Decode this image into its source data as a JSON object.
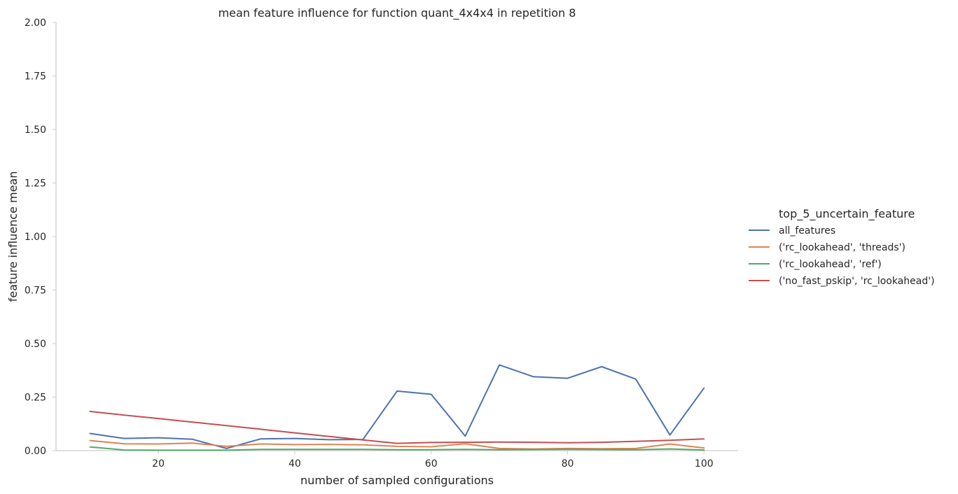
{
  "chart_data": {
    "type": "line",
    "title": "mean feature influence for function quant_4x4x4 in repetition 8",
    "xlabel": "number of sampled configurations",
    "ylabel": "feature influence mean",
    "xlim": [
      5,
      105
    ],
    "ylim": [
      0,
      2.0
    ],
    "xticks": [
      20,
      40,
      60,
      80,
      100
    ],
    "yticks": [
      0.0,
      0.25,
      0.5,
      0.75,
      1.0,
      1.25,
      1.5,
      1.75,
      2.0
    ],
    "xtick_labels": [
      "20",
      "40",
      "60",
      "80",
      "100"
    ],
    "ytick_labels": [
      "0.00",
      "0.25",
      "0.50",
      "0.75",
      "1.00",
      "1.25",
      "1.50",
      "1.75",
      "2.00"
    ],
    "grid": false,
    "legend_title": "top_5_uncertain_feature",
    "legend_position": "right",
    "x": [
      10,
      15,
      20,
      25,
      30,
      35,
      40,
      45,
      50,
      55,
      60,
      65,
      70,
      75,
      80,
      85,
      90,
      95,
      100
    ],
    "series": [
      {
        "name": "all_features",
        "color": "#4c72b0",
        "values": [
          0.08,
          0.057,
          0.06,
          0.053,
          0.01,
          0.055,
          0.057,
          0.051,
          0.052,
          0.278,
          0.263,
          0.068,
          0.4,
          0.345,
          0.338,
          0.392,
          0.334,
          0.073,
          0.292
        ]
      },
      {
        "name": "('rc_lookahead', 'threads')",
        "color": "#dd8452",
        "values": [
          0.047,
          0.032,
          0.031,
          0.035,
          0.02,
          0.031,
          0.028,
          0.029,
          0.027,
          0.02,
          0.018,
          0.032,
          0.01,
          0.008,
          0.01,
          0.009,
          0.01,
          0.031,
          0.012
        ]
      },
      {
        "name": "('rc_lookahead', 'ref')",
        "color": "#55a868",
        "values": [
          0.017,
          0.003,
          0.002,
          0.002,
          0.002,
          0.006,
          0.006,
          0.006,
          0.006,
          0.004,
          0.004,
          0.006,
          0.004,
          0.005,
          0.006,
          0.005,
          0.004,
          0.008,
          0.003
        ]
      },
      {
        "name": "('no_fast_pskip', 'rc_lookahead')",
        "color": "#c44e52",
        "values": [
          0.183,
          0.166,
          0.15,
          0.133,
          0.117,
          0.1,
          0.083,
          0.066,
          0.05,
          0.034,
          0.038,
          0.039,
          0.04,
          0.039,
          0.037,
          0.039,
          0.043,
          0.048,
          0.055
        ]
      }
    ]
  }
}
